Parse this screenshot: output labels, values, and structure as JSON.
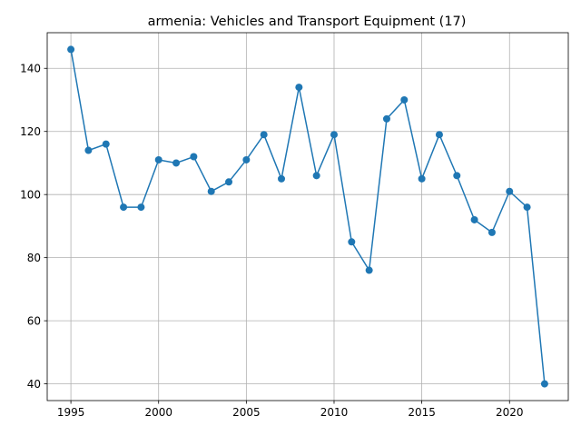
{
  "chart_data": {
    "type": "line",
    "title": "armenia: Vehicles and Transport Equipment (17)",
    "xlabel": "",
    "ylabel": "",
    "xlim": [
      1993.65,
      2023.35
    ],
    "ylim": [
      34.7,
      151.3
    ],
    "xticks": [
      1995,
      2000,
      2005,
      2010,
      2015,
      2020
    ],
    "yticks": [
      40,
      60,
      80,
      100,
      120,
      140
    ],
    "grid": true,
    "color": "#1f77b4",
    "marker": "circle",
    "x": [
      1995,
      1996,
      1997,
      1998,
      1999,
      2000,
      2001,
      2002,
      2003,
      2004,
      2005,
      2006,
      2007,
      2008,
      2009,
      2010,
      2011,
      2012,
      2013,
      2014,
      2015,
      2016,
      2017,
      2018,
      2019,
      2020,
      2021,
      2022
    ],
    "values": [
      146,
      114,
      116,
      96,
      96,
      111,
      110,
      112,
      101,
      104,
      111,
      119,
      105,
      134,
      106,
      119,
      85,
      76,
      124,
      130,
      105,
      119,
      106,
      92,
      88,
      101,
      96,
      40
    ]
  }
}
